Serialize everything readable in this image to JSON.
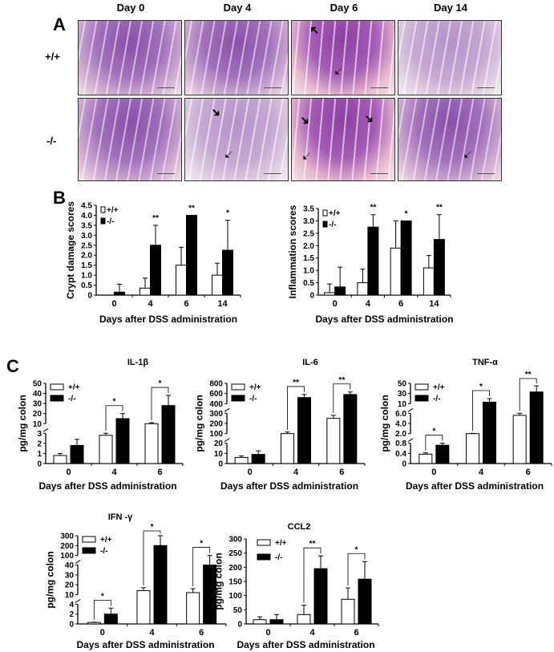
{
  "panels": {
    "a": "A",
    "b": "B",
    "c": "C"
  },
  "histology": {
    "columns": [
      "Day 0",
      "Day 4",
      "Day 6",
      "Day 14"
    ],
    "rows": [
      "+/+",
      "-/-"
    ]
  },
  "colors": {
    "wild_type": "#ffffff",
    "knockout": "#000000",
    "stain": "#9b5fb5"
  },
  "chart_data": [
    {
      "id": "crypt",
      "type": "bar",
      "title": "",
      "ylabel": "Crypt damage scores",
      "xlabel": "Days after DSS administration",
      "categories": [
        "0",
        "4",
        "6",
        "14"
      ],
      "ylim": [
        0,
        4.5
      ],
      "segments": [
        {
          "range": [
            0,
            4.5
          ],
          "ticks": [
            0,
            0.5,
            1.0,
            1.5,
            2.0,
            2.5,
            3.0,
            3.5,
            4.0,
            4.5
          ],
          "labels": [
            "0",
            "0.5",
            "1.0",
            "1.5",
            "2.0",
            "2.5",
            "3.0",
            "3.5",
            "4.0",
            "4.5"
          ]
        }
      ],
      "legend": "top-left",
      "legend_style": "small",
      "series": [
        {
          "name": "+/+",
          "values": [
            0,
            0.35,
            1.5,
            1.0
          ],
          "errors": [
            0,
            0.5,
            0.9,
            0.6
          ]
        },
        {
          "name": "-/-",
          "values": [
            0.15,
            2.5,
            4.0,
            2.25
          ],
          "errors": [
            0.4,
            1.0,
            0,
            1.5
          ]
        }
      ],
      "significance": [
        "",
        "**",
        "**",
        "*"
      ],
      "brackets": false
    },
    {
      "id": "inflam",
      "type": "bar",
      "title": "",
      "ylabel": "Inflammation scores",
      "xlabel": "Days after DSS administration",
      "categories": [
        "0",
        "4",
        "6",
        "14"
      ],
      "ylim": [
        0,
        3.5
      ],
      "segments": [
        {
          "range": [
            0,
            3.5
          ],
          "ticks": [
            0,
            0.5,
            1.0,
            1.5,
            2.0,
            2.5,
            3.0,
            3.5
          ],
          "labels": [
            "0",
            "0.5",
            "1.0",
            "1.5",
            "2.0",
            "2.5",
            "3.0",
            "3.5"
          ]
        }
      ],
      "legend": "top-left",
      "legend_style": "small",
      "series": [
        {
          "name": "+/+",
          "values": [
            0.1,
            0.5,
            1.9,
            1.1
          ],
          "errors": [
            0.35,
            0.55,
            1.1,
            0.5
          ]
        },
        {
          "name": "-/-",
          "values": [
            0.33,
            2.75,
            3.0,
            2.25
          ],
          "errors": [
            0.8,
            0.5,
            0,
            1.0
          ]
        }
      ],
      "significance": [
        "",
        "**",
        "*",
        "**"
      ],
      "brackets": false
    },
    {
      "id": "il1b",
      "type": "bar",
      "title": "IL-1β",
      "ylabel": "pg/mg colon",
      "xlabel": "Days after DSS administration",
      "categories": [
        "0",
        "4",
        "6"
      ],
      "segments": [
        {
          "range": [
            0,
            3
          ],
          "ticks": [
            0,
            1,
            2,
            3
          ],
          "labels": [
            "0",
            "1",
            "2",
            "3"
          ]
        },
        {
          "range": [
            10,
            50
          ],
          "ticks": [
            10,
            20,
            30,
            40,
            50
          ],
          "labels": [
            "10",
            "20",
            "30",
            "40",
            "50"
          ]
        }
      ],
      "legend": "top-left",
      "legend_style": "box",
      "series": [
        {
          "name": "+/+",
          "values": [
            0.8,
            2.8,
            10
          ],
          "errors": [
            0.2,
            0.25,
            1
          ]
        },
        {
          "name": "-/-",
          "values": [
            1.8,
            15,
            28
          ],
          "errors": [
            0.6,
            5,
            10
          ]
        }
      ],
      "significance": [
        "",
        "*",
        "*"
      ],
      "brackets": true
    },
    {
      "id": "il6",
      "type": "bar",
      "title": "IL-6",
      "ylabel": "pg/mg colon",
      "xlabel": "Days after DSS administration",
      "categories": [
        "0",
        "4",
        "6"
      ],
      "segments": [
        {
          "range": [
            0,
            20
          ],
          "ticks": [
            0,
            10,
            20
          ],
          "labels": [
            "0",
            "10",
            "20"
          ]
        },
        {
          "range": [
            100,
            300
          ],
          "ticks": [
            100,
            200,
            300
          ],
          "labels": [
            "100",
            "200",
            "300"
          ]
        },
        {
          "range": [
            400,
            800
          ],
          "ticks": [
            400,
            600,
            800
          ],
          "labels": [
            "400",
            "600",
            "800"
          ]
        }
      ],
      "legend": "top-left",
      "legend_style": "box",
      "series": [
        {
          "name": "+/+",
          "values": [
            6,
            100,
            250
          ],
          "errors": [
            1.5,
            15,
            30
          ]
        },
        {
          "name": "-/-",
          "values": [
            9,
            520,
            580
          ],
          "errors": [
            3.5,
            60,
            50
          ]
        }
      ],
      "significance": [
        "",
        "**",
        "**"
      ],
      "brackets": true
    },
    {
      "id": "tnf",
      "type": "bar",
      "title": "TNF-α",
      "ylabel": "pg/mg colon",
      "xlabel": "Days after DSS administration",
      "categories": [
        "0",
        "4",
        "6"
      ],
      "segments": [
        {
          "range": [
            0,
            0.8
          ],
          "ticks": [
            0,
            0.4,
            0.8
          ],
          "labels": [
            "0",
            "0.4",
            "0.8"
          ]
        },
        {
          "range": [
            2,
            6
          ],
          "ticks": [
            2,
            4,
            6
          ],
          "labels": [
            "2.0",
            "4.0",
            "6.0"
          ]
        },
        {
          "range": [
            10,
            50
          ],
          "ticks": [
            10,
            30,
            50
          ],
          "labels": [
            "10",
            "30",
            "50"
          ]
        }
      ],
      "legend": "top-left",
      "legend_style": "box",
      "series": [
        {
          "name": "+/+",
          "values": [
            0.37,
            2.0,
            5.6
          ],
          "errors": [
            0.05,
            0.05,
            0.6
          ]
        },
        {
          "name": "-/-",
          "values": [
            0.72,
            13,
            33
          ],
          "errors": [
            0.2,
            7,
            12
          ]
        }
      ],
      "significance": [
        "*",
        "*",
        "**"
      ],
      "brackets": true
    },
    {
      "id": "ifn",
      "type": "bar",
      "title": "IFN -γ",
      "ylabel": "pg/mg colon",
      "xlabel": "Days after DSS administration",
      "categories": [
        "0",
        "4",
        "6"
      ],
      "segments": [
        {
          "range": [
            0,
            4
          ],
          "ticks": [
            0,
            2,
            4
          ],
          "labels": [
            "0",
            "2",
            "4"
          ]
        },
        {
          "range": [
            10,
            40
          ],
          "ticks": [
            10,
            20,
            30,
            40
          ],
          "labels": [
            "10",
            "20",
            "30",
            "40"
          ]
        },
        {
          "range": [
            100,
            300
          ],
          "ticks": [
            100,
            200,
            300
          ],
          "labels": [
            "100",
            "200",
            "300"
          ]
        }
      ],
      "legend": "top-left",
      "legend_style": "box",
      "series": [
        {
          "name": "+/+",
          "values": [
            0.3,
            14,
            12
          ],
          "errors": [
            0.05,
            3,
            4
          ]
        },
        {
          "name": "-/-",
          "values": [
            2,
            200,
            80
          ],
          "errors": [
            1.2,
            100,
            20
          ]
        }
      ],
      "significance": [
        "*",
        "*",
        "*"
      ],
      "brackets": true
    },
    {
      "id": "ccl2",
      "type": "bar",
      "title": "CCL2",
      "ylabel": "pg/mg colon",
      "xlabel": "Days after DSS administration",
      "categories": [
        "0",
        "4",
        "6"
      ],
      "ylim": [
        0,
        300
      ],
      "segments": [
        {
          "range": [
            0,
            300
          ],
          "ticks": [
            0,
            50,
            100,
            150,
            200,
            250,
            300
          ],
          "labels": [
            "0",
            "50",
            "100",
            "150",
            "200",
            "250",
            "300"
          ]
        }
      ],
      "legend": "top-left",
      "legend_style": "box",
      "series": [
        {
          "name": "+/+",
          "values": [
            15,
            33,
            87
          ],
          "errors": [
            10,
            33,
            40
          ]
        },
        {
          "name": "-/-",
          "values": [
            15,
            195,
            158
          ],
          "errors": [
            18,
            45,
            62
          ]
        }
      ],
      "significance": [
        "",
        "**",
        "*"
      ],
      "brackets": true
    }
  ]
}
